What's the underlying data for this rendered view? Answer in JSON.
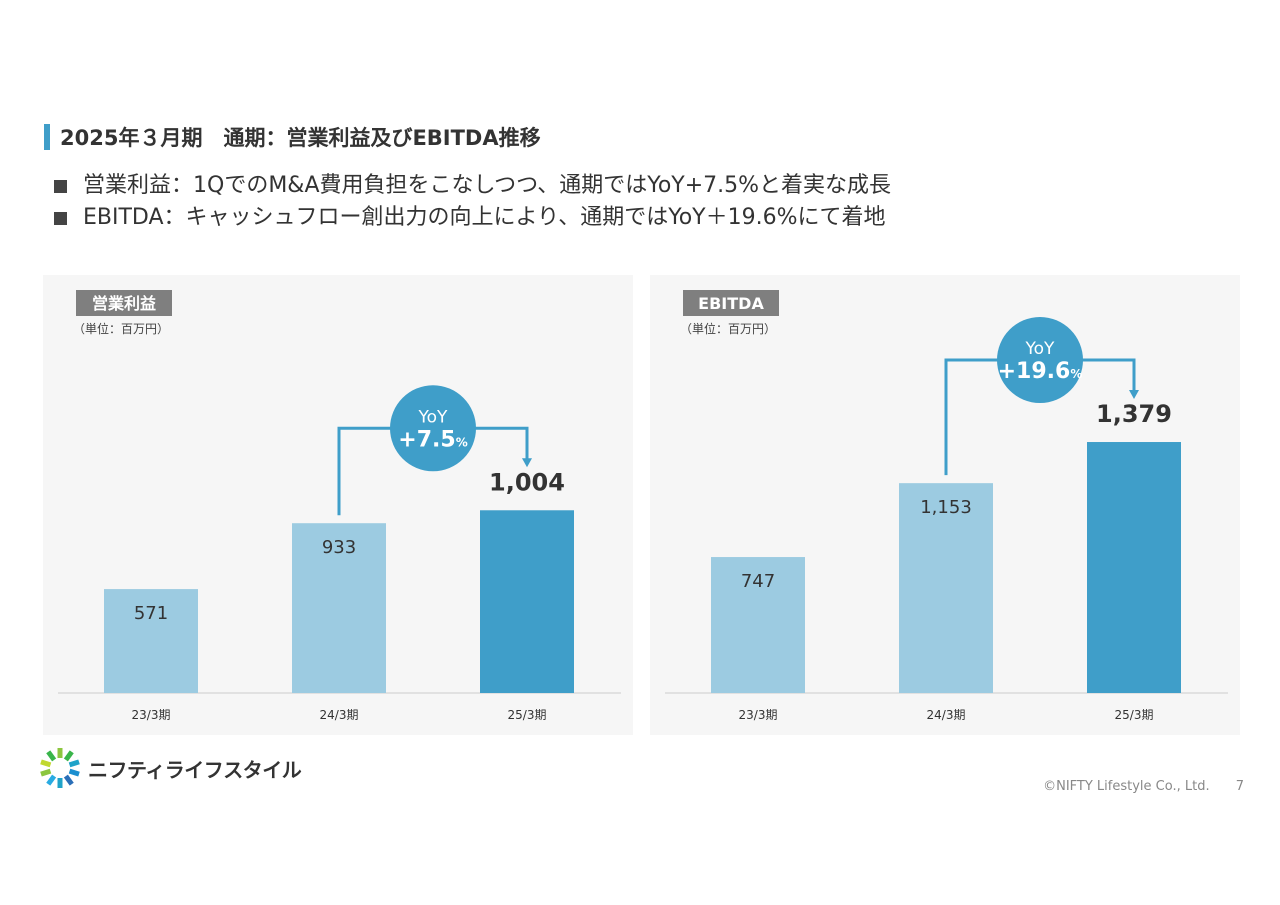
{
  "header": {
    "title": "2025年３月期　通期：営業利益及びEBITDA推移"
  },
  "bullets": [
    "営業利益：1QでのM&A費用負担をこなしつつ、通期ではYoY+7.5%と着実な成長",
    "EBITDA：キャッシュフロー創出力の向上により、通期ではYoY＋19.6%にて着地"
  ],
  "chart_data": [
    {
      "type": "bar",
      "title": "営業利益",
      "unit": "（単位：百万円）",
      "categories": [
        "23/3期",
        "24/3期",
        "25/3期"
      ],
      "values": [
        571,
        933,
        1004
      ],
      "labels": [
        "571",
        "933",
        "1,004"
      ],
      "highlight_index": 2,
      "yoy": {
        "label": "YoY",
        "value": "+7.5",
        "suffix": "%"
      },
      "colors": {
        "bar": "#9ccbe1",
        "highlight": "#3f9ec9",
        "title_bg": "#7f7f7f"
      }
    },
    {
      "type": "bar",
      "title": "EBITDA",
      "unit": "（単位：百万円）",
      "categories": [
        "23/3期",
        "24/3期",
        "25/3期"
      ],
      "values": [
        747,
        1153,
        1379
      ],
      "labels": [
        "747",
        "1,153",
        "1,379"
      ],
      "highlight_index": 2,
      "yoy": {
        "label": "YoY",
        "value": "+19.6",
        "suffix": "%"
      },
      "colors": {
        "bar": "#9ccbe1",
        "highlight": "#3f9ec9",
        "title_bg": "#7f7f7f"
      }
    }
  ],
  "footer": {
    "brand": "ニフティライフスタイル",
    "copyright": "©NIFTY Lifestyle Co., Ltd.",
    "page": "7"
  }
}
